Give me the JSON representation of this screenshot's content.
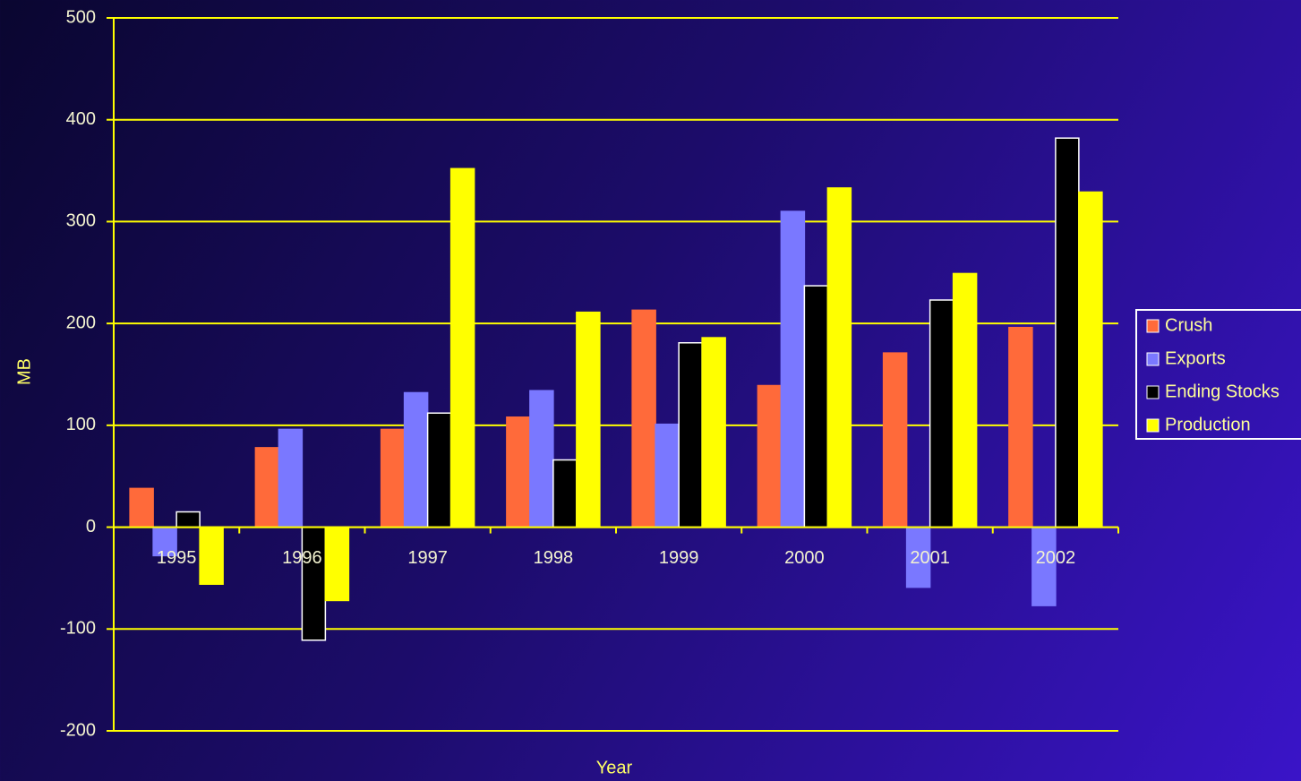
{
  "chart_data": {
    "type": "bar",
    "x_label": "Year",
    "y_label": "MB",
    "categories": [
      "1995",
      "1996",
      "1997",
      "1998",
      "1999",
      "2000",
      "2001",
      "2002"
    ],
    "series": [
      {
        "name": "Crush",
        "color": "#ff6a3a",
        "values": [
          38,
          78,
          96,
          108,
          213,
          139,
          171,
          196
        ]
      },
      {
        "name": "Exports",
        "color": "#7a78ff",
        "values": [
          -28,
          96,
          132,
          134,
          101,
          310,
          -59,
          -77
        ]
      },
      {
        "name": "Ending Stocks",
        "color": "#000000",
        "values": [
          15,
          -111,
          112,
          66,
          181,
          237,
          223,
          382
        ]
      },
      {
        "name": "Production",
        "color": "#ffff00",
        "values": [
          -56,
          -72,
          352,
          211,
          186,
          333,
          249,
          329
        ]
      }
    ],
    "ylim": [
      -200,
      500
    ],
    "yticks": [
      -200,
      -100,
      0,
      100,
      200,
      300,
      400,
      500
    ],
    "grid": true,
    "legend": "right"
  }
}
